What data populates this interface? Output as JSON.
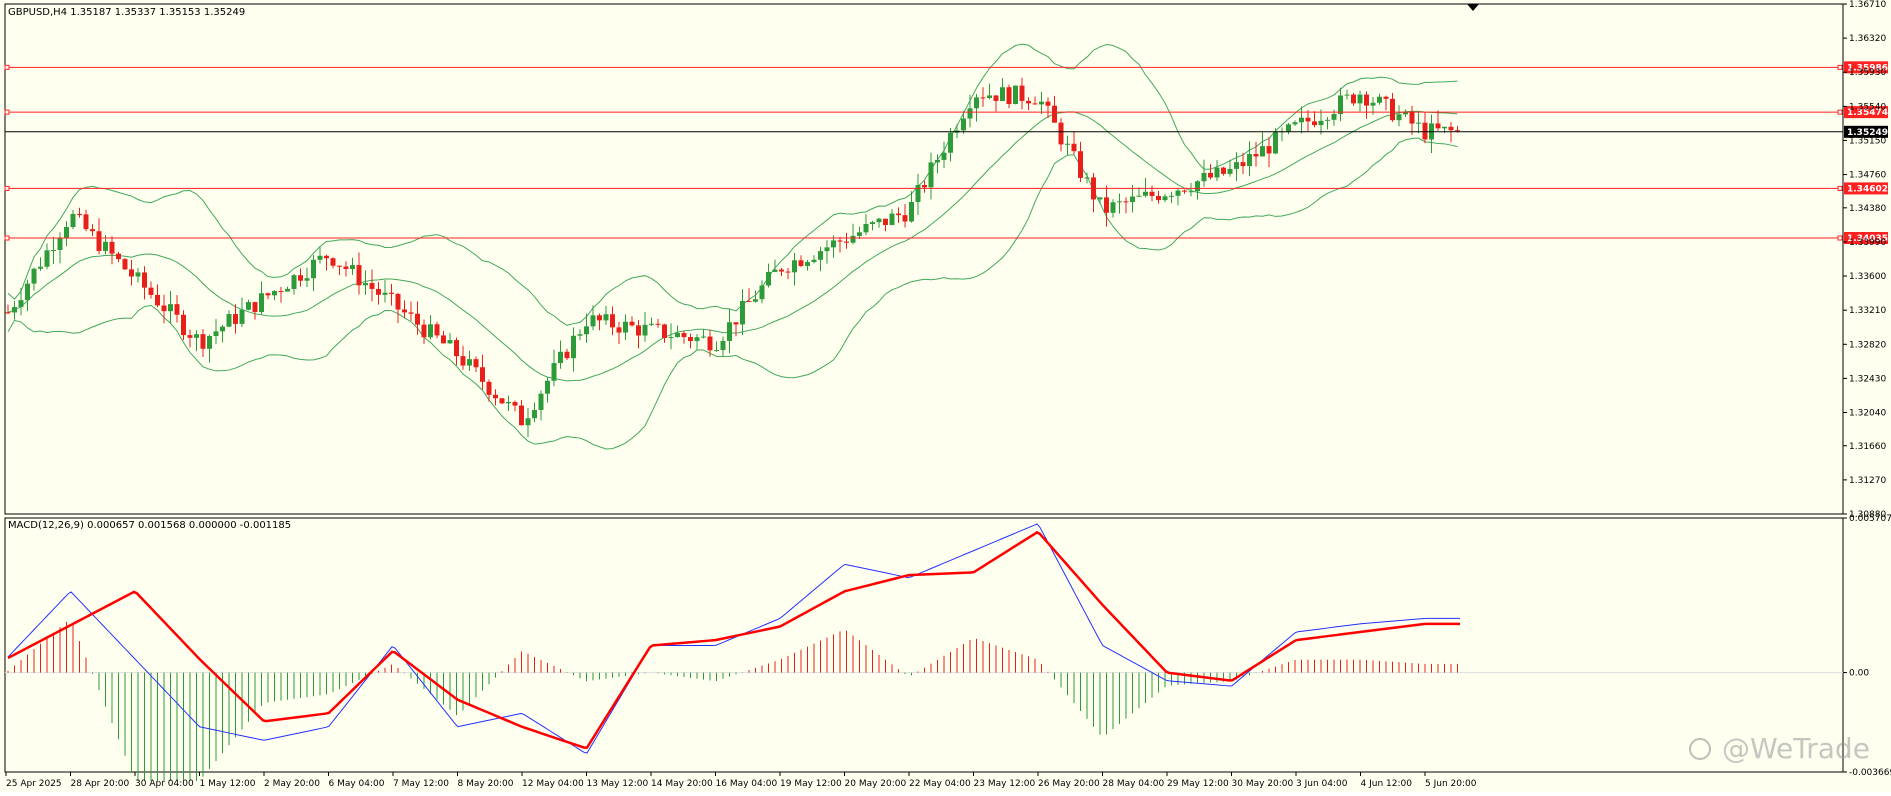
{
  "price_panel": {
    "header": "GBPUSD,H4  1.35187 1.35337 1.35153 1.35249",
    "axis_ticks": [
      "1.36710",
      "1.36320",
      "1.35930",
      "1.35540",
      "1.35150",
      "1.34760",
      "1.34380",
      "1.33990",
      "1.33600",
      "1.33210",
      "1.32820",
      "1.32430",
      "1.32040",
      "1.31660",
      "1.31270",
      "1.30880"
    ],
    "current_price": "1.35249"
  },
  "macd_panel": {
    "header": "MACD(12,26,9) 0.000657 0.001568 0.000000 -0.001185",
    "axis_ticks": [
      "0.005707",
      "0.00",
      "-0.003669"
    ]
  },
  "time_axis": [
    "25 Apr 2025",
    "28 Apr 20:00",
    "30 Apr 04:00",
    "1 May 12:00",
    "2 May 20:00",
    "6 May 04:00",
    "7 May 12:00",
    "8 May 20:00",
    "12 May 04:00",
    "13 May 12:00",
    "14 May 20:00",
    "16 May 04:00",
    "19 May 12:00",
    "20 May 20:00",
    "22 May 04:00",
    "23 May 12:00",
    "26 May 20:00",
    "28 May 04:00",
    "29 May 12:00",
    "30 May 20:00",
    "3 Jun 04:00",
    "4 Jun 12:00",
    "5 Jun 20:00"
  ],
  "watermark": "@WeTrade",
  "colors": {
    "background": "#fffff0",
    "bull": "#2e9b3a",
    "bear": "#e8201c",
    "band": "#42a85a",
    "level": "#ff2020",
    "macd": "#2430ff",
    "signal": "#ff0000"
  },
  "chart_data": [
    {
      "type": "candlestick",
      "symbol": "GBPUSD",
      "timeframe": "H4",
      "header_ohlc": {
        "open": 1.35187,
        "high": 1.35337,
        "low": 1.35153,
        "close": 1.35249
      },
      "ylim": [
        1.3088,
        1.3671
      ],
      "horizontal_levels": [
        1.35986,
        1.35474,
        1.35249,
        1.34602,
        1.34035
      ],
      "overlays": [
        "Bollinger Bands (upper, middle, lower)"
      ],
      "key_points": [
        {
          "x": "25 Apr 2025",
          "price": 1.3315
        },
        {
          "x": "28 Apr 20:00",
          "price": 1.343
        },
        {
          "x": "1 May 12:00",
          "price": 1.3285
        },
        {
          "x": "6 May 04:00",
          "price": 1.3385
        },
        {
          "x": "8 May 20:00",
          "price": 1.327
        },
        {
          "x": "12 May 04:00",
          "price": 1.3195
        },
        {
          "x": "13 May 12:00",
          "price": 1.331
        },
        {
          "x": "16 May 04:00",
          "price": 1.3285
        },
        {
          "x": "19 May 12:00",
          "price": 1.337
        },
        {
          "x": "22 May 04:00",
          "price": 1.3435
        },
        {
          "x": "23 May 12:00",
          "price": 1.357
        },
        {
          "x": "26 May 20:00",
          "price": 1.3565
        },
        {
          "x": "28 May 04:00",
          "price": 1.3435
        },
        {
          "x": "30 May 20:00",
          "price": 1.348
        },
        {
          "x": "3 Jun 04:00",
          "price": 1.353
        },
        {
          "x": "4 Jun 12:00",
          "price": 1.357
        },
        {
          "x": "5 Jun 20:00",
          "price": 1.3525
        }
      ]
    },
    {
      "type": "line",
      "indicator": "MACD(12,26,9)",
      "ylim": [
        -0.003669,
        0.005707
      ],
      "values_shown": [
        0.000657,
        0.001568,
        0.0,
        -0.001185
      ],
      "series": [
        {
          "name": "MACD",
          "points": [
            [
              "25 Apr 2025",
              0.0005
            ],
            [
              "28 Apr 20:00",
              0.003
            ],
            [
              "1 May 12:00",
              -0.002
            ],
            [
              "2 May 20:00",
              -0.0025
            ],
            [
              "6 May 04:00",
              -0.002
            ],
            [
              "7 May 12:00",
              0.001
            ],
            [
              "8 May 20:00",
              -0.002
            ],
            [
              "12 May 04:00",
              -0.0015
            ],
            [
              "13 May 12:00",
              -0.003
            ],
            [
              "14 May 20:00",
              0.001
            ],
            [
              "16 May 04:00",
              0.001
            ],
            [
              "19 May 12:00",
              0.002
            ],
            [
              "20 May 20:00",
              0.004
            ],
            [
              "22 May 04:00",
              0.0035
            ],
            [
              "23 May 12:00",
              0.0045
            ],
            [
              "26 May 20:00",
              0.0055
            ],
            [
              "28 May 04:00",
              0.001
            ],
            [
              "29 May 12:00",
              -0.0003
            ],
            [
              "30 May 20:00",
              -0.0005
            ],
            [
              "3 Jun 04:00",
              0.0015
            ],
            [
              "4 Jun 12:00",
              0.0018
            ],
            [
              "5 Jun 20:00",
              0.002
            ]
          ]
        },
        {
          "name": "Signal",
          "points": [
            [
              "25 Apr 2025",
              0.0005
            ],
            [
              "30 Apr 04:00",
              0.003
            ],
            [
              "1 May 12:00",
              0.0005
            ],
            [
              "2 May 20:00",
              -0.0018
            ],
            [
              "6 May 04:00",
              -0.0015
            ],
            [
              "7 May 12:00",
              0.0008
            ],
            [
              "8 May 20:00",
              -0.001
            ],
            [
              "12 May 04:00",
              -0.002
            ],
            [
              "13 May 12:00",
              -0.0028
            ],
            [
              "14 May 20:00",
              0.001
            ],
            [
              "16 May 04:00",
              0.0012
            ],
            [
              "19 May 12:00",
              0.0017
            ],
            [
              "20 May 20:00",
              0.003
            ],
            [
              "22 May 04:00",
              0.0036
            ],
            [
              "23 May 12:00",
              0.0037
            ],
            [
              "26 May 20:00",
              0.0052
            ],
            [
              "28 May 04:00",
              0.0025
            ],
            [
              "29 May 12:00",
              0.0
            ],
            [
              "30 May 20:00",
              -0.0003
            ],
            [
              "3 Jun 04:00",
              0.0012
            ],
            [
              "4 Jun 12:00",
              0.0015
            ],
            [
              "5 Jun 20:00",
              0.0018
            ]
          ]
        }
      ]
    }
  ]
}
